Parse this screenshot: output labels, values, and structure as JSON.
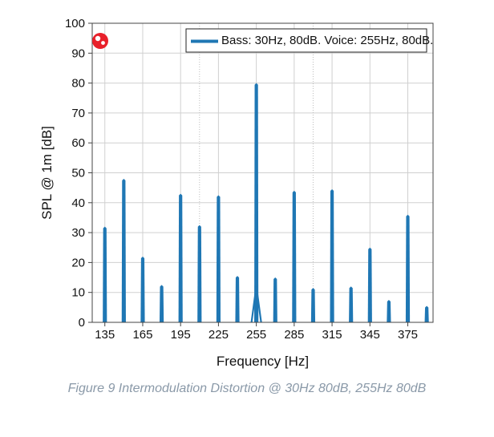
{
  "chart_data": {
    "type": "bar",
    "xlabel": "Frequency [Hz]",
    "ylabel": "SPL @ 1m [dB]",
    "xlim": [
      125,
      395
    ],
    "ylim": [
      0,
      100
    ],
    "x_ticks": [
      135,
      165,
      195,
      225,
      255,
      285,
      315,
      345,
      375
    ],
    "y_ticks": [
      0,
      10,
      20,
      30,
      40,
      50,
      60,
      70,
      80,
      90,
      100
    ],
    "grid": true,
    "legend_position": "top-right",
    "series": [
      {
        "name": "Bass: 30Hz, 80dB. Voice: 255Hz, 80dB.",
        "color": "#1f77b4",
        "x": [
          135,
          150,
          165,
          180,
          195,
          210,
          225,
          240,
          255,
          270,
          285,
          300,
          315,
          330,
          345,
          360,
          375,
          390
        ],
        "y": [
          32,
          48,
          22,
          12.5,
          43,
          32.5,
          42.5,
          15.5,
          80,
          15,
          44,
          11.5,
          44.5,
          12,
          25,
          7.5,
          36,
          5.5
        ]
      }
    ]
  },
  "caption": "Figure 9 Intermodulation Distortion @ 30Hz 80dB, 255Hz 80dB"
}
